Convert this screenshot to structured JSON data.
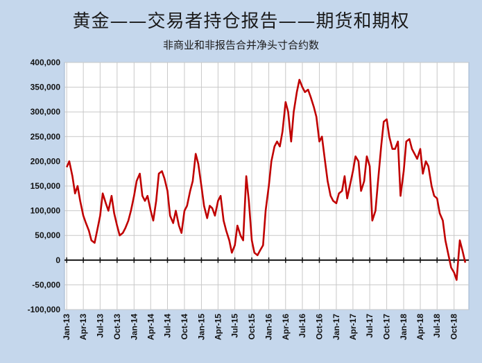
{
  "chart_data": {
    "type": "line",
    "title": "黄金——交易者持仓报告——期货和期权",
    "subtitle": "非商业和非报告合并净头寸合约数",
    "ylim": [
      -100000,
      400000
    ],
    "yticks": [
      400000,
      350000,
      300000,
      250000,
      200000,
      150000,
      100000,
      50000,
      0,
      -50000,
      -100000
    ],
    "ytick_labels": [
      "400,000",
      "350,000",
      "300,000",
      "250,000",
      "200,000",
      "150,000",
      "100,000",
      "50,000",
      "0",
      "-50,000",
      "-100,000"
    ],
    "xtick_labels": [
      "Jan-13",
      "Apr-13",
      "Jul-13",
      "Oct-13",
      "Jan-14",
      "Apr-14",
      "Jul-14",
      "Oct-14",
      "Jan-15",
      "Apr-15",
      "Jul-15",
      "Oct-15",
      "Jan-16",
      "Apr-16",
      "Jul-16",
      "Oct-16",
      "Jan-17",
      "Apr-17",
      "Jul-17",
      "Oct-17",
      "Jan-18",
      "Apr-18",
      "Jul-18",
      "Oct-18"
    ],
    "grid": true,
    "line_color": "#c00000",
    "x": [
      "2013-01-01",
      "2013-01-15",
      "2013-02-01",
      "2013-02-15",
      "2013-03-01",
      "2013-03-15",
      "2013-04-01",
      "2013-04-15",
      "2013-05-01",
      "2013-05-15",
      "2013-06-01",
      "2013-06-15",
      "2013-07-01",
      "2013-07-15",
      "2013-08-01",
      "2013-08-15",
      "2013-09-01",
      "2013-09-15",
      "2013-10-01",
      "2013-10-15",
      "2013-11-01",
      "2013-11-15",
      "2013-12-01",
      "2013-12-15",
      "2014-01-01",
      "2014-01-15",
      "2014-02-01",
      "2014-02-15",
      "2014-03-01",
      "2014-03-15",
      "2014-04-01",
      "2014-04-15",
      "2014-05-01",
      "2014-05-15",
      "2014-06-01",
      "2014-06-15",
      "2014-07-01",
      "2014-07-15",
      "2014-08-01",
      "2014-08-15",
      "2014-09-01",
      "2014-09-15",
      "2014-10-01",
      "2014-10-15",
      "2014-11-01",
      "2014-11-15",
      "2014-12-01",
      "2014-12-15",
      "2015-01-01",
      "2015-01-15",
      "2015-02-01",
      "2015-02-15",
      "2015-03-01",
      "2015-03-15",
      "2015-04-01",
      "2015-04-15",
      "2015-05-01",
      "2015-05-15",
      "2015-06-01",
      "2015-06-15",
      "2015-07-01",
      "2015-07-15",
      "2015-08-01",
      "2015-08-15",
      "2015-09-01",
      "2015-09-15",
      "2015-10-01",
      "2015-10-15",
      "2015-11-01",
      "2015-11-15",
      "2015-12-01",
      "2015-12-15",
      "2016-01-01",
      "2016-01-15",
      "2016-02-01",
      "2016-02-15",
      "2016-03-01",
      "2016-03-15",
      "2016-04-01",
      "2016-04-15",
      "2016-05-01",
      "2016-05-15",
      "2016-06-01",
      "2016-06-15",
      "2016-07-01",
      "2016-07-15",
      "2016-08-01",
      "2016-08-15",
      "2016-09-01",
      "2016-09-15",
      "2016-10-01",
      "2016-10-15",
      "2016-11-01",
      "2016-11-15",
      "2016-12-01",
      "2016-12-15",
      "2017-01-01",
      "2017-01-15",
      "2017-02-01",
      "2017-02-15",
      "2017-03-01",
      "2017-03-15",
      "2017-04-01",
      "2017-04-15",
      "2017-05-01",
      "2017-05-15",
      "2017-06-01",
      "2017-06-15",
      "2017-07-01",
      "2017-07-15",
      "2017-08-01",
      "2017-08-15",
      "2017-09-01",
      "2017-09-15",
      "2017-10-01",
      "2017-10-15",
      "2017-11-01",
      "2017-11-15",
      "2017-12-01",
      "2017-12-15",
      "2018-01-01",
      "2018-01-15",
      "2018-02-01",
      "2018-02-15",
      "2018-03-01",
      "2018-03-15",
      "2018-04-01",
      "2018-04-15",
      "2018-05-01",
      "2018-05-15",
      "2018-06-01",
      "2018-06-15",
      "2018-07-01",
      "2018-07-15",
      "2018-08-01",
      "2018-08-15",
      "2018-09-01",
      "2018-09-15",
      "2018-10-01",
      "2018-10-15",
      "2018-11-01",
      "2018-11-15",
      "2018-12-01"
    ],
    "values": [
      188000,
      200000,
      170000,
      135000,
      150000,
      120000,
      90000,
      75000,
      60000,
      40000,
      35000,
      60000,
      90000,
      135000,
      115000,
      100000,
      130000,
      95000,
      70000,
      50000,
      55000,
      65000,
      80000,
      100000,
      130000,
      160000,
      175000,
      130000,
      120000,
      130000,
      100000,
      80000,
      120000,
      175000,
      180000,
      165000,
      140000,
      90000,
      75000,
      100000,
      70000,
      55000,
      100000,
      110000,
      140000,
      160000,
      215000,
      195000,
      150000,
      110000,
      85000,
      110000,
      105000,
      90000,
      120000,
      130000,
      80000,
      60000,
      40000,
      15000,
      30000,
      70000,
      50000,
      40000,
      170000,
      120000,
      40000,
      15000,
      10000,
      20000,
      30000,
      100000,
      150000,
      200000,
      230000,
      240000,
      230000,
      260000,
      320000,
      300000,
      240000,
      300000,
      340000,
      365000,
      350000,
      340000,
      345000,
      330000,
      310000,
      290000,
      240000,
      250000,
      200000,
      160000,
      130000,
      120000,
      115000,
      135000,
      140000,
      170000,
      125000,
      150000,
      180000,
      210000,
      200000,
      140000,
      160000,
      210000,
      190000,
      80000,
      100000,
      160000,
      230000,
      280000,
      285000,
      250000,
      225000,
      225000,
      240000,
      130000,
      180000,
      240000,
      245000,
      225000,
      215000,
      205000,
      225000,
      175000,
      200000,
      190000,
      150000,
      130000,
      125000,
      95000,
      80000,
      40000,
      10000,
      -15000,
      -25000,
      -40000,
      40000,
      20000,
      -5000
    ]
  }
}
